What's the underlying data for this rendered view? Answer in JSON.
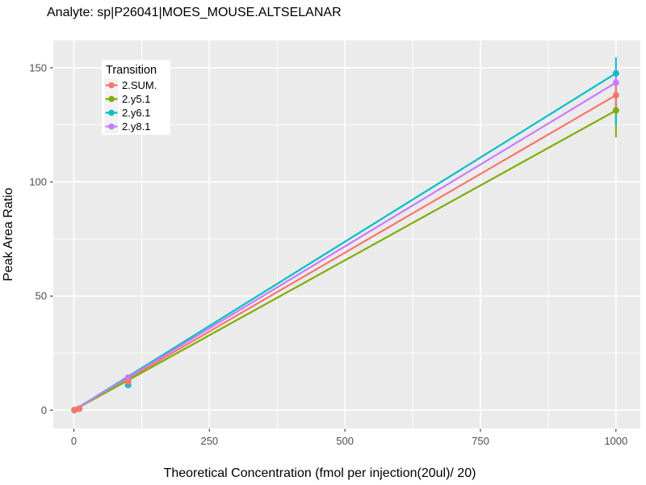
{
  "chart_data": {
    "type": "line",
    "title": "Analyte: sp|P26041|MOES_MOUSE.ALTSELANAR",
    "xlabel": "Theoretical Concentration (fmol per injection(20ul)/ 20)",
    "ylabel": "Peak Area Ratio",
    "xlim": [
      -38,
      1045
    ],
    "ylim": [
      -8,
      162
    ],
    "x_ticks": [
      0,
      250,
      500,
      750,
      1000
    ],
    "y_ticks": [
      0,
      50,
      100,
      150
    ],
    "x_minor_gridlines": [
      125,
      375,
      625,
      875
    ],
    "y_minor_gridlines": [
      25,
      75,
      125
    ],
    "grid": "on",
    "panel_bg": "#EBEBEB",
    "gridline_color": "#FFFFFF",
    "tick_color": "#333333",
    "tick_label_color": "#4D4D4D",
    "legend": {
      "title": "Transition",
      "position": "inside-top-left",
      "bg": "#FFFFFF",
      "key_bg": "#F2F2F2"
    },
    "series": [
      {
        "name": "2.SUM.",
        "color": "#F8766D",
        "points": [
          [
            1,
            0.05
          ],
          [
            10,
            0.65
          ],
          [
            100,
            12.4
          ],
          [
            1000,
            138.0
          ]
        ],
        "fit_line": [
          [
            0,
            0
          ],
          [
            1000,
            138.0
          ]
        ]
      },
      {
        "name": "2.y5.1",
        "color": "#7CAE00",
        "points": [
          [
            1,
            0.05
          ],
          [
            10,
            0.65
          ],
          [
            100,
            13.1
          ],
          [
            1000,
            131.3
          ]
        ],
        "fit_line": [
          [
            0,
            0
          ],
          [
            1000,
            131.3
          ]
        ]
      },
      {
        "name": "2.y6.1",
        "color": "#00BFC4",
        "points": [
          [
            1,
            0.05
          ],
          [
            10,
            0.65
          ],
          [
            100,
            11.0
          ],
          [
            1000,
            147.6
          ]
        ],
        "fit_line": [
          [
            0,
            0
          ],
          [
            1000,
            147.6
          ]
        ]
      },
      {
        "name": "2.y8.1",
        "color": "#C77CFF",
        "points": [
          [
            1,
            0.05
          ],
          [
            10,
            0.65
          ],
          [
            100,
            14.3
          ],
          [
            1000,
            143.5
          ]
        ],
        "fit_line": [
          [
            0,
            0
          ],
          [
            1000,
            143.5
          ]
        ]
      }
    ],
    "errorbars": [
      {
        "series": "2.y5.1",
        "x": 1000,
        "lo": 119.5,
        "hi": 141.0
      },
      {
        "series": "2.y6.1",
        "x": 1000,
        "lo": 124.6,
        "hi": 154.6
      },
      {
        "series": "2.SUM.",
        "x": 1000,
        "lo": 129.8,
        "hi": 146.2
      },
      {
        "series": "2.y8.1",
        "x": 1000,
        "lo": 142.8,
        "hi": 149.8
      }
    ],
    "point_draw_order": [
      "2.y5.1",
      "2.y8.1",
      "2.y6.1",
      "2.SUM."
    ]
  }
}
